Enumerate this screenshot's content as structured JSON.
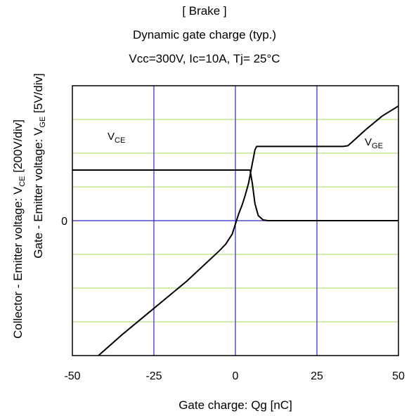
{
  "chart_data": {
    "type": "line",
    "title_lines": [
      "[ Brake ]",
      "Dynamic gate charge  (typ.)",
      "Vcc=300V,   Ic=10A,   Tj= 25°C"
    ],
    "xlabel": "Gate charge: Qg [nC]",
    "ylabel_outer": {
      "prefix": "Collector - Emitter voltage: V",
      "sub": "CE",
      "suffix": " [200V/div]"
    },
    "ylabel_inner": {
      "prefix": "Gate - Emitter voltage: V",
      "sub": "GE",
      "suffix": " [5V/div]"
    },
    "xlim": [
      -50,
      50
    ],
    "ylim": [
      -4,
      4
    ],
    "x_ticks": [
      "-50",
      "-25",
      "0",
      "25",
      "50"
    ],
    "y_zero_label": "0",
    "grid": true,
    "series": [
      {
        "name_main": "V",
        "name_sub": "CE",
        "points": [
          [
            -50,
            1.5
          ],
          [
            4.5,
            1.5
          ],
          [
            5.2,
            1.1
          ],
          [
            6.0,
            0.5
          ],
          [
            7.0,
            0.15
          ],
          [
            8.5,
            0.02
          ],
          [
            10,
            0
          ],
          [
            50,
            0
          ]
        ]
      },
      {
        "name_main": "V",
        "name_sub": "GE",
        "points": [
          [
            -42,
            -4.0
          ],
          [
            -35,
            -3.4
          ],
          [
            -25,
            -2.6
          ],
          [
            -15,
            -1.8
          ],
          [
            -5,
            -0.9
          ],
          [
            -3,
            -0.7
          ],
          [
            -1,
            -0.4
          ],
          [
            0,
            -0.1
          ],
          [
            1,
            0.2
          ],
          [
            2,
            0.45
          ],
          [
            3,
            0.75
          ],
          [
            4,
            1.1
          ],
          [
            5,
            1.6
          ],
          [
            6,
            2.1
          ],
          [
            6.5,
            2.2
          ],
          [
            33,
            2.2
          ],
          [
            34.5,
            2.22
          ],
          [
            36,
            2.35
          ],
          [
            40,
            2.7
          ],
          [
            45,
            3.1
          ],
          [
            50,
            3.4
          ]
        ]
      }
    ]
  }
}
